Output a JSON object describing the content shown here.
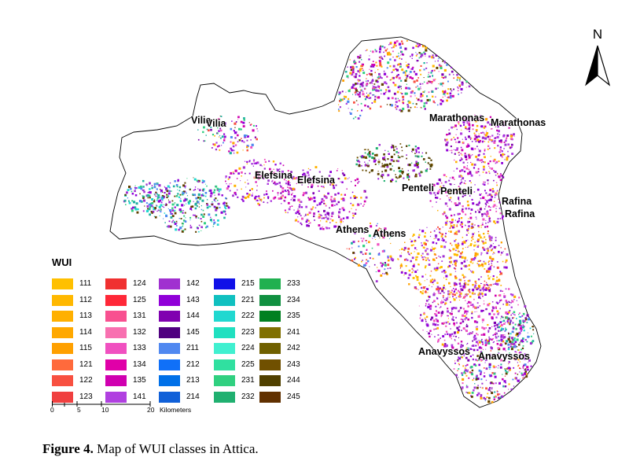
{
  "figure": {
    "label": "Figure 4.",
    "caption": "Map of WUI classes in Attica."
  },
  "map": {
    "north_label": "N",
    "places": [
      {
        "id": "vilia",
        "label": "Vilia",
        "label2": "Vilia"
      },
      {
        "id": "elefsina",
        "label": "Elefsina",
        "label2": "Elefsina"
      },
      {
        "id": "marathonas",
        "label": "Marathonas",
        "label2": "Marathonas"
      },
      {
        "id": "penteli",
        "label": "Penteli",
        "label2": "Penteli"
      },
      {
        "id": "rafina",
        "label": "Rafina",
        "label2": "Rafina"
      },
      {
        "id": "athens",
        "label": "Athens",
        "label2": "Athens"
      },
      {
        "id": "anavyssos",
        "label": "Anavyssos",
        "label2": "Anavyssos"
      }
    ]
  },
  "legend": {
    "title": "WUI",
    "columns": [
      [
        {
          "code": "111",
          "color": "#FFC000"
        },
        {
          "code": "112",
          "color": "#FFB800"
        },
        {
          "code": "113",
          "color": "#FFB000"
        },
        {
          "code": "114",
          "color": "#FFA800"
        },
        {
          "code": "115",
          "color": "#FFA000"
        },
        {
          "code": "121",
          "color": "#FF6A3C"
        },
        {
          "code": "122",
          "color": "#F85040"
        },
        {
          "code": "123",
          "color": "#F04040"
        }
      ],
      [
        {
          "code": "124",
          "color": "#F03030"
        },
        {
          "code": "125",
          "color": "#FF2838"
        },
        {
          "code": "131",
          "color": "#F85090"
        },
        {
          "code": "132",
          "color": "#F870B0"
        },
        {
          "code": "133",
          "color": "#F050C0"
        },
        {
          "code": "134",
          "color": "#E000A8"
        },
        {
          "code": "135",
          "color": "#D000B0"
        },
        {
          "code": "141",
          "color": "#B040E0"
        }
      ],
      [
        {
          "code": "142",
          "color": "#A030D0"
        },
        {
          "code": "143",
          "color": "#9000D8"
        },
        {
          "code": "144",
          "color": "#8000B0"
        },
        {
          "code": "145",
          "color": "#500080"
        },
        {
          "code": "211",
          "color": "#5088F0"
        },
        {
          "code": "212",
          "color": "#1070F8"
        },
        {
          "code": "213",
          "color": "#0070E8"
        },
        {
          "code": "214",
          "color": "#1060D8"
        }
      ],
      [
        {
          "code": "215",
          "color": "#1010E8"
        },
        {
          "code": "221",
          "color": "#10C0C0"
        },
        {
          "code": "222",
          "color": "#20D8D0"
        },
        {
          "code": "223",
          "color": "#20E0C0"
        },
        {
          "code": "224",
          "color": "#40F0D0"
        },
        {
          "code": "225",
          "color": "#30E0A0"
        },
        {
          "code": "231",
          "color": "#30D080"
        },
        {
          "code": "232",
          "color": "#20B070"
        }
      ],
      [
        {
          "code": "233",
          "color": "#20B050"
        },
        {
          "code": "234",
          "color": "#109040"
        },
        {
          "code": "235",
          "color": "#008020"
        },
        {
          "code": "241",
          "color": "#807000"
        },
        {
          "code": "242",
          "color": "#706000"
        },
        {
          "code": "243",
          "color": "#705000"
        },
        {
          "code": "244",
          "color": "#504000"
        },
        {
          "code": "245",
          "color": "#603000"
        }
      ]
    ]
  },
  "scalebar": {
    "ticks": [
      "0",
      "5",
      "10",
      "20"
    ],
    "unit": "Kilometers"
  }
}
